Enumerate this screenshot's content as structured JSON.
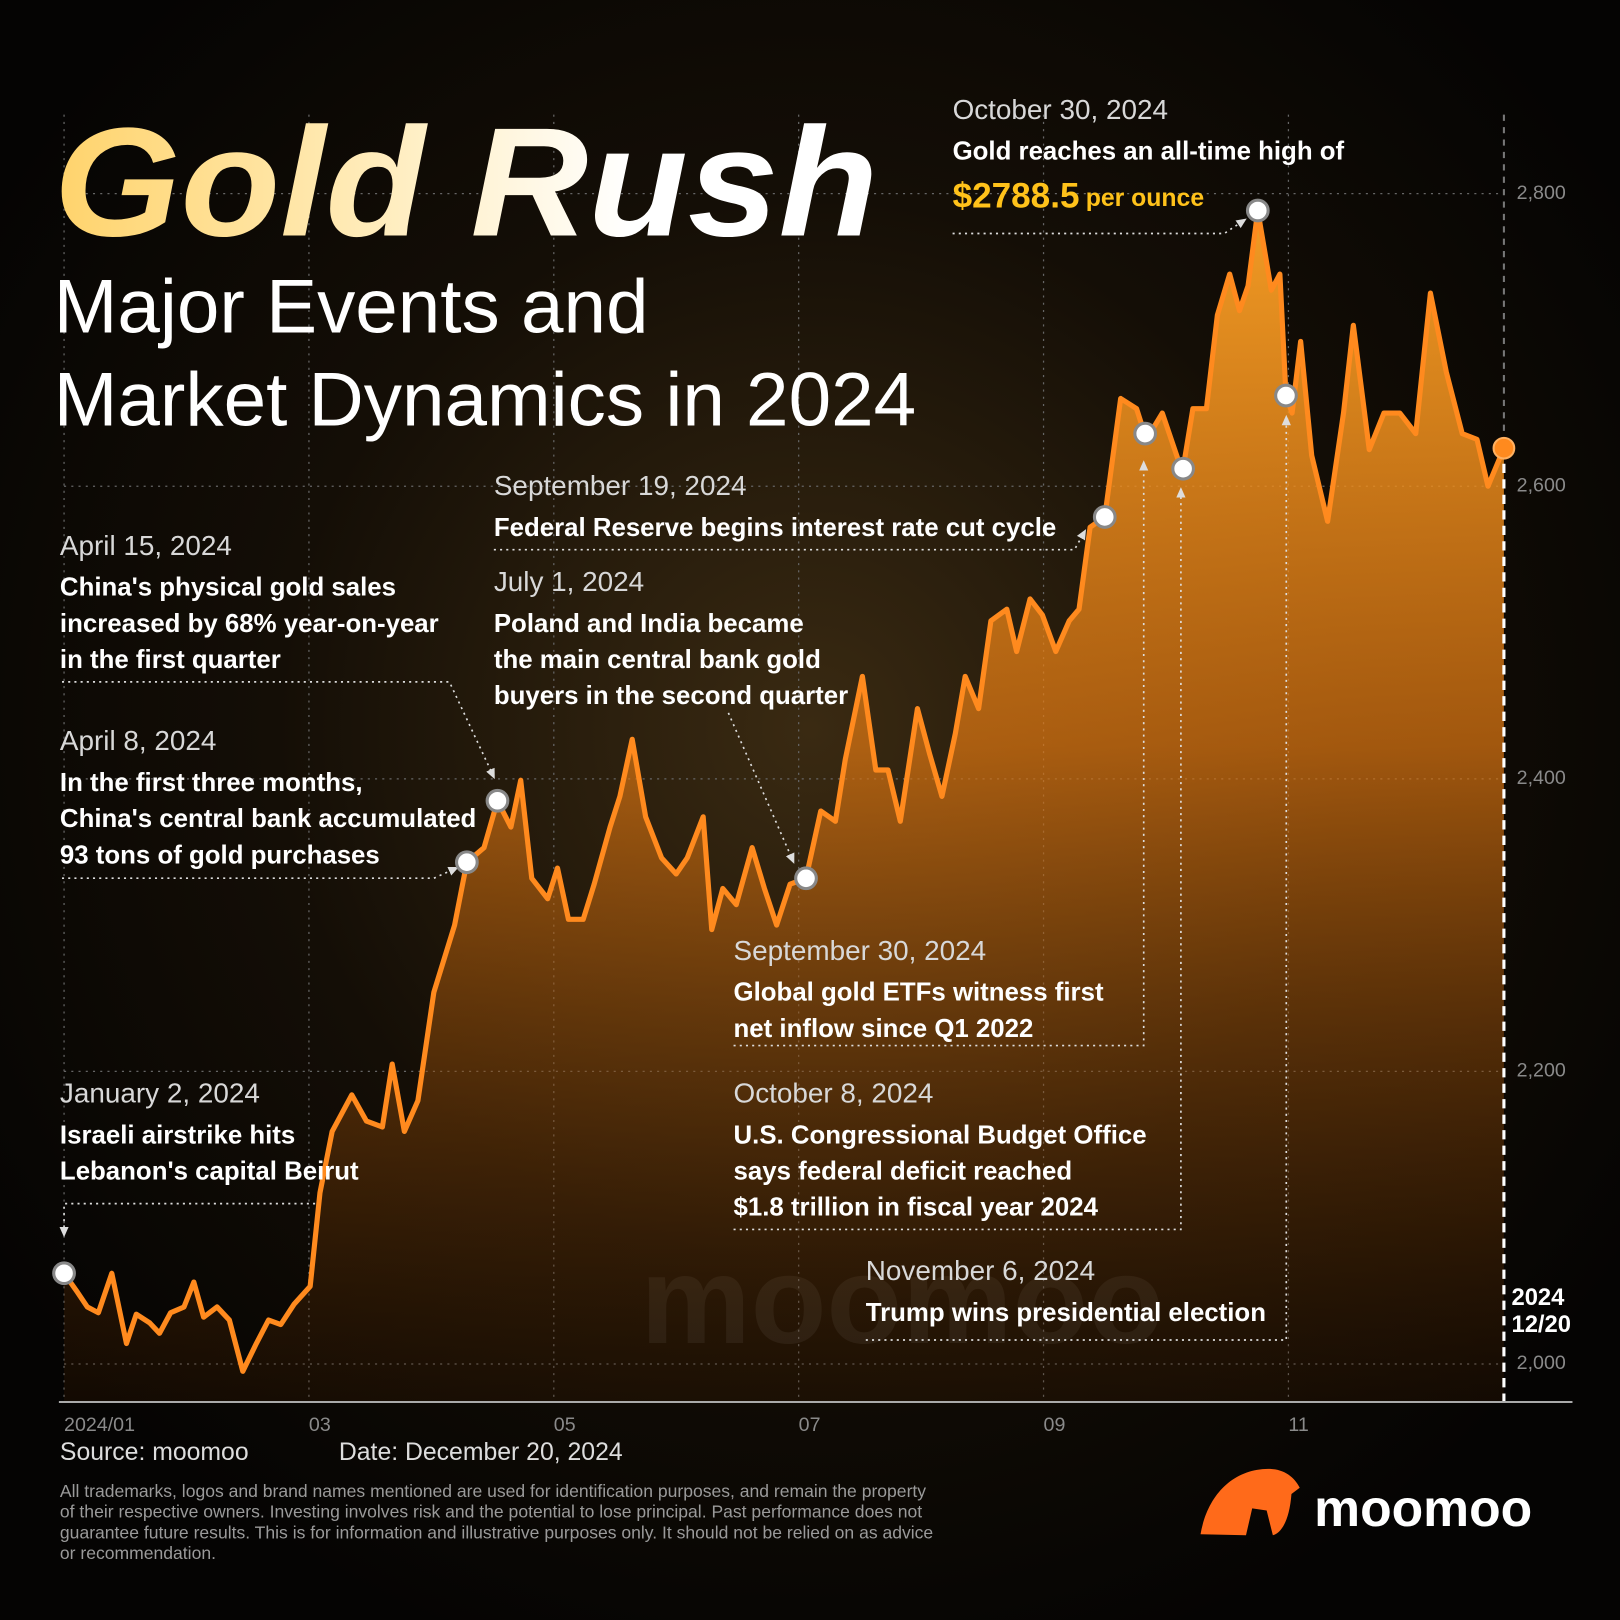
{
  "chart_data": {
    "type": "line",
    "title": "Gold Rush",
    "subtitle": [
      "Major Events and",
      "Market Dynamics in 2024"
    ],
    "x": [
      1.0,
      1.11,
      1.19,
      1.28,
      1.39,
      1.51,
      1.59,
      1.7,
      1.78,
      1.87,
      1.98,
      2.06,
      2.14,
      2.25,
      2.35,
      2.46,
      2.57,
      2.67,
      2.77,
      2.88,
      3.01,
      3.09,
      3.19,
      3.35,
      3.47,
      3.6,
      3.68,
      3.78,
      3.89,
      4.02,
      4.19,
      4.29,
      4.43,
      4.54,
      4.65,
      4.73,
      4.82,
      4.95,
      5.03,
      5.12,
      5.24,
      5.33,
      5.46,
      5.54,
      5.64,
      5.75,
      5.88,
      6.0,
      6.09,
      6.22,
      6.29,
      6.38,
      6.49,
      6.62,
      6.72,
      6.82,
      6.93,
      7.06,
      7.18,
      7.3,
      7.38,
      7.52,
      7.63,
      7.73,
      7.83,
      7.97,
      8.07,
      8.17,
      8.28,
      8.36,
      8.47,
      8.57,
      8.7,
      8.78,
      8.89,
      8.99,
      9.1,
      9.21,
      9.29,
      9.38,
      9.5,
      9.63,
      9.76,
      9.84,
      9.97,
      10.1,
      10.14,
      10.22,
      10.33,
      10.42,
      10.52,
      10.6,
      10.67,
      10.75,
      10.86,
      10.93,
      10.98,
      11.03,
      11.1,
      11.19,
      11.32,
      11.45,
      11.53,
      11.66,
      11.78,
      11.91,
      12.04,
      12.16,
      12.29,
      12.42,
      12.54,
      12.63,
      12.76
    ],
    "values": [
      2062,
      2049,
      2039,
      2035,
      2062,
      2014,
      2034,
      2028,
      2021,
      2035,
      2039,
      2056,
      2032,
      2039,
      2030,
      1995,
      2014,
      2030,
      2027,
      2041,
      2053,
      2117,
      2159,
      2184,
      2166,
      2162,
      2205,
      2159,
      2180,
      2254,
      2300,
      2343,
      2353,
      2385,
      2367,
      2399,
      2332,
      2318,
      2339,
      2304,
      2304,
      2328,
      2367,
      2388,
      2427,
      2374,
      2346,
      2335,
      2346,
      2374,
      2297,
      2325,
      2314,
      2353,
      2325,
      2300,
      2328,
      2332,
      2378,
      2371,
      2413,
      2470,
      2406,
      2406,
      2371,
      2448,
      2417,
      2388,
      2431,
      2470,
      2448,
      2508,
      2516,
      2487,
      2523,
      2512,
      2487,
      2508,
      2516,
      2572,
      2579,
      2660,
      2653,
      2632,
      2650,
      2618,
      2612,
      2653,
      2653,
      2717,
      2745,
      2720,
      2737,
      2788.5,
      2734,
      2745,
      2662,
      2650,
      2699,
      2621,
      2576,
      2650,
      2710,
      2625,
      2650,
      2650,
      2636,
      2732,
      2678,
      2636,
      2632,
      2600,
      2626
    ],
    "color": "#ff8a1e",
    "xlim": [
      1,
      13.32
    ],
    "ylim": [
      1974,
      2854
    ],
    "xticks": [
      {
        "value": 1,
        "label": "2024/01"
      },
      {
        "value": 3,
        "label": "03"
      },
      {
        "value": 5,
        "label": "05"
      },
      {
        "value": 7,
        "label": "07"
      },
      {
        "value": 9,
        "label": "09"
      },
      {
        "value": 11,
        "label": "11"
      }
    ],
    "yticks": [
      {
        "value": 2000,
        "label": "2,000"
      },
      {
        "value": 2200,
        "label": "2,200"
      },
      {
        "value": 2400,
        "label": "2,400"
      },
      {
        "value": 2600,
        "label": "2,600"
      },
      {
        "value": 2800,
        "label": "2,800"
      }
    ],
    "grid": true,
    "end_label": [
      "2024",
      "12/20"
    ],
    "watermark": "moomoo",
    "annotations": [
      {
        "date": "January 2, 2024",
        "lines": [
          "Israeli airstrike hits",
          "Lebanon's capital Beirut"
        ],
        "x": 1.0,
        "y": 2062
      },
      {
        "date": "April 8, 2024",
        "lines": [
          "In the first three months,",
          "China's central bank accumulated",
          "93 tons of gold purchases"
        ],
        "x": 4.29,
        "y": 2343
      },
      {
        "date": "April 15, 2024",
        "lines": [
          "China's physical gold sales",
          "increased by 68% year-on-year",
          "in the first quarter"
        ],
        "x": 4.54,
        "y": 2385
      },
      {
        "date": "July 1, 2024",
        "lines": [
          "Poland and India became",
          "the main central bank gold",
          "buyers in the second quarter"
        ],
        "x": 7.06,
        "y": 2332
      },
      {
        "date": "September 19, 2024",
        "lines": [
          "Federal Reserve begins interest rate cut cycle"
        ],
        "x": 9.5,
        "y": 2579
      },
      {
        "date": "September 30, 2024",
        "lines": [
          "Global gold ETFs witness first",
          "net inflow since Q1 2022"
        ],
        "x": 9.83,
        "y": 2636
      },
      {
        "date": "October 8, 2024",
        "lines": [
          "U.S. Congressional Budget Office",
          "says federal deficit reached",
          "$1.8 trillion in fiscal year 2024"
        ],
        "x": 10.14,
        "y": 2612
      },
      {
        "date": "October 30, 2024",
        "lines": [
          "Gold reaches an all-time high of"
        ],
        "value_label": "$2788.5",
        "suffix": "per ounce",
        "x": 10.75,
        "y": 2788.5
      },
      {
        "date": "November 6, 2024",
        "lines": [
          "Trump wins presidential election"
        ],
        "x": 10.98,
        "y": 2662
      }
    ]
  },
  "source": "Source: moomoo",
  "date": "Date: December 20, 2024",
  "disclaimer": [
    "All trademarks, logos and brand names mentioned are used for identification purposes, and remain the property",
    "of their respective owners. Investing involves risk and the potential to lose principal. Past performance does not",
    "guarantee future results. This is for information and illustrative purposes only. It should not be relied on as advice",
    "or recommendation."
  ],
  "logo": "moomoo"
}
